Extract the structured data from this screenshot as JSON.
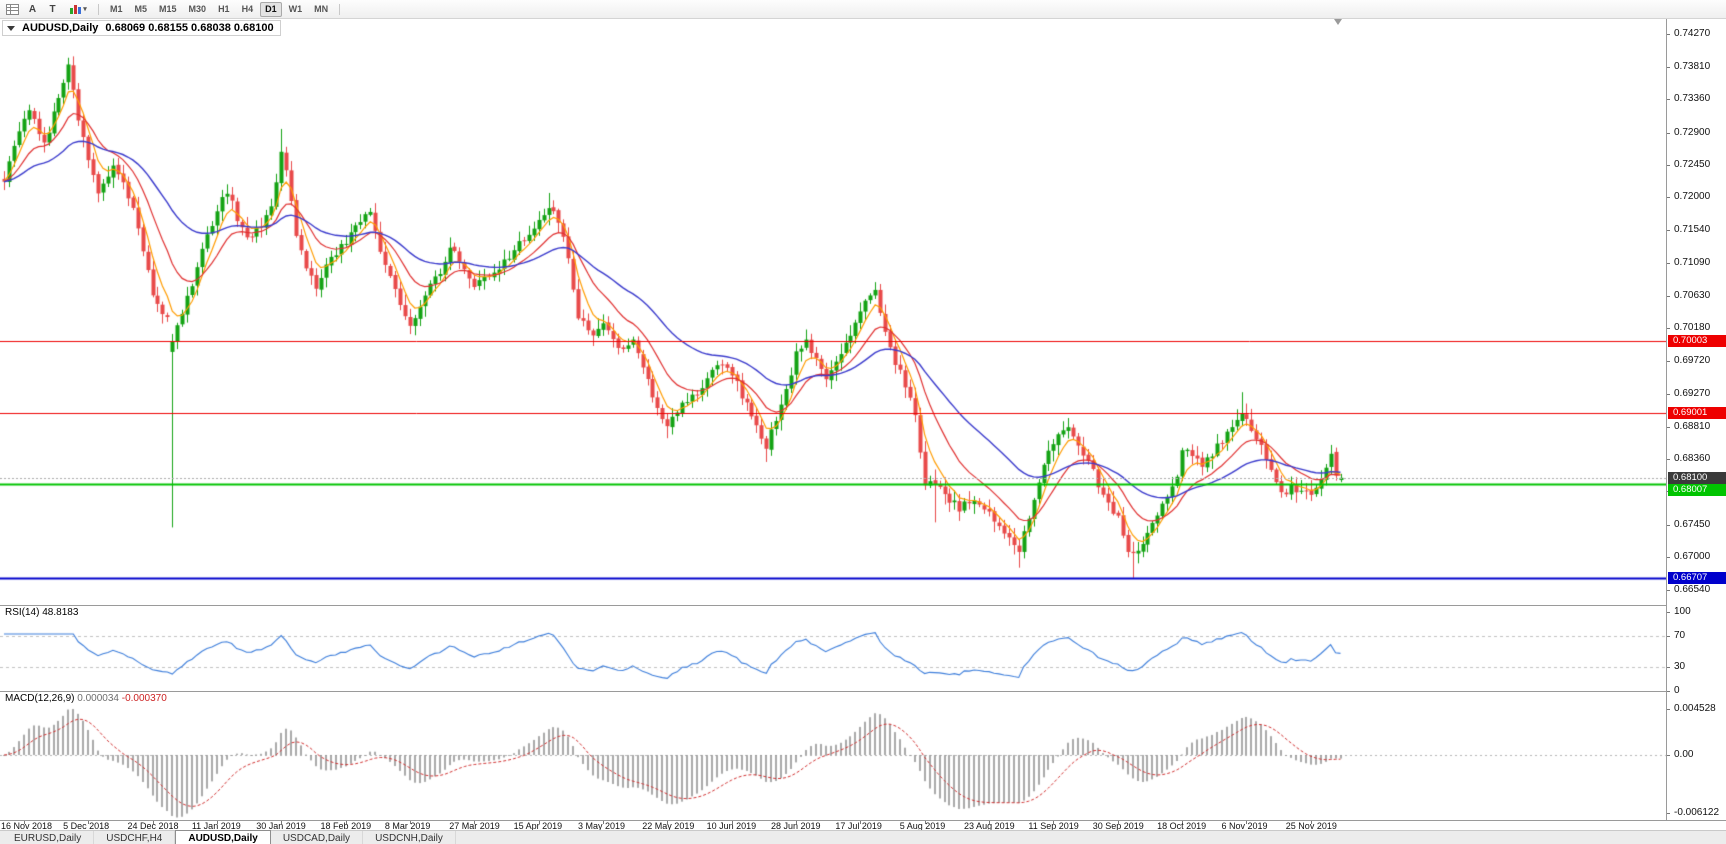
{
  "toolbar": {
    "icons": [
      {
        "name": "chart-grid-icon",
        "glyph": ""
      },
      {
        "name": "cursor-tool-icon",
        "glyph": "A"
      },
      {
        "name": "text-tool-icon",
        "glyph": "T"
      },
      {
        "name": "indicators-dropdown-icon",
        "glyph": "▾"
      }
    ],
    "timeframes": [
      {
        "label": "M1"
      },
      {
        "label": "M5"
      },
      {
        "label": "M15"
      },
      {
        "label": "M30"
      },
      {
        "label": "H1"
      },
      {
        "label": "H4"
      },
      {
        "label": "D1",
        "active": true
      },
      {
        "label": "W1"
      },
      {
        "label": "MN"
      }
    ]
  },
  "chart_title": {
    "symbol": "AUDUSD,Daily",
    "ohlc": "0.68069 0.68155 0.68038 0.68100"
  },
  "price_axis_ticks": [
    "0.74270",
    "0.73810",
    "0.73360",
    "0.72900",
    "0.72450",
    "0.72000",
    "0.71540",
    "0.71090",
    "0.70630",
    "0.70180",
    "0.69720",
    "0.69270",
    "0.68810",
    "0.68360",
    "0.67910",
    "0.67450",
    "0.67000",
    "0.66540"
  ],
  "rsi_panel": {
    "label": "RSI(14)",
    "value": "48.8183",
    "axis_ticks": [
      {
        "text": "100",
        "v": 100
      },
      {
        "text": "70",
        "v": 70
      },
      {
        "text": "30",
        "v": 30
      },
      {
        "text": "0",
        "v": 0
      }
    ]
  },
  "macd_panel": {
    "label": "MACD(12,26,9)",
    "value_main": "0.000034",
    "value_signal": "-0.000370",
    "axis_ticks": [
      {
        "text": "0.004528",
        "v": 0.004528
      },
      {
        "text": "0.00",
        "v": 0
      },
      {
        "text": "-0.006122",
        "v": -0.006122
      }
    ]
  },
  "time_axis_labels": [
    {
      "text": "16 Nov 2018",
      "bar": 4
    },
    {
      "text": "5 Dec 2018",
      "bar": 17
    },
    {
      "text": "24 Dec 2018",
      "bar": 30
    },
    {
      "text": "11 Jan 2019",
      "bar": 43
    },
    {
      "text": "30 Jan 2019",
      "bar": 56
    },
    {
      "text": "18 Feb 2019",
      "bar": 69
    },
    {
      "text": "8 Mar 2019",
      "bar": 82
    },
    {
      "text": "27 Mar 2019",
      "bar": 95
    },
    {
      "text": "15 Apr 2019",
      "bar": 108
    },
    {
      "text": "3 May 2019",
      "bar": 121
    },
    {
      "text": "22 May 2019",
      "bar": 134
    },
    {
      "text": "10 Jun 2019",
      "bar": 147
    },
    {
      "text": "28 Jun 2019",
      "bar": 160
    },
    {
      "text": "17 Jul 2019",
      "bar": 173
    },
    {
      "text": "5 Aug 2019",
      "bar": 186
    },
    {
      "text": "23 Aug 2019",
      "bar": 199
    },
    {
      "text": "11 Sep 2019",
      "bar": 212
    },
    {
      "text": "30 Sep 2019",
      "bar": 225
    },
    {
      "text": "18 Oct 2019",
      "bar": 238
    },
    {
      "text": "6 Nov 2019",
      "bar": 251
    },
    {
      "text": "25 Nov 2019",
      "bar": 264
    }
  ],
  "tabs": [
    {
      "label": "EURUSD,Daily"
    },
    {
      "label": "USDCHF,H4"
    },
    {
      "label": "AUDUSD,Daily",
      "active": true
    },
    {
      "label": "USDCAD,Daily"
    },
    {
      "label": "USDCNH,Daily"
    }
  ],
  "colors": {
    "candle_up": "#14a314",
    "candle_down": "#e84a4a",
    "ma_fast": "#ff9c00",
    "ma_mid": "#e03030",
    "ma_slow": "#3a3acc",
    "rsi_line": "#3d7edb",
    "macd_hist": "#8f8f8f",
    "macd_signal": "#d03030",
    "level_red": "#ee0000",
    "level_green": "#00c400",
    "level_blue": "#0000cc",
    "current_price_line": "#aaaaaa",
    "current_badge_bg": "#3a3a3a"
  },
  "chart_data": {
    "type": "candlestick",
    "symbol": "AUDUSD",
    "timeframe": "Daily",
    "bar_count": 271,
    "visible_price_range": [
      0.6654,
      0.7427
    ],
    "price_waypoints": [
      [
        0,
        0.7225
      ],
      [
        3,
        0.729
      ],
      [
        5,
        0.732
      ],
      [
        8,
        0.7275
      ],
      [
        11,
        0.7335
      ],
      [
        13,
        0.7385
      ],
      [
        15,
        0.7305
      ],
      [
        17,
        0.7255
      ],
      [
        19,
        0.721
      ],
      [
        22,
        0.7245
      ],
      [
        24,
        0.722
      ],
      [
        26,
        0.718
      ],
      [
        28,
        0.713
      ],
      [
        30,
        0.706
      ],
      [
        33,
        0.703
      ],
      [
        34,
        0.7
      ],
      [
        36,
        0.704
      ],
      [
        38,
        0.708
      ],
      [
        40,
        0.713
      ],
      [
        43,
        0.718
      ],
      [
        45,
        0.721
      ],
      [
        47,
        0.717
      ],
      [
        49,
        0.714
      ],
      [
        52,
        0.716
      ],
      [
        54,
        0.719
      ],
      [
        56,
        0.726
      ],
      [
        57,
        0.7235
      ],
      [
        59,
        0.715
      ],
      [
        61,
        0.71
      ],
      [
        63,
        0.7075
      ],
      [
        66,
        0.7115
      ],
      [
        69,
        0.714
      ],
      [
        72,
        0.7165
      ],
      [
        74,
        0.7185
      ],
      [
        76,
        0.7125
      ],
      [
        78,
        0.7085
      ],
      [
        80,
        0.7055
      ],
      [
        82,
        0.702
      ],
      [
        85,
        0.7065
      ],
      [
        88,
        0.7095
      ],
      [
        90,
        0.7135
      ],
      [
        92,
        0.711
      ],
      [
        95,
        0.708
      ],
      [
        98,
        0.709
      ],
      [
        101,
        0.711
      ],
      [
        104,
        0.7135
      ],
      [
        107,
        0.716
      ],
      [
        110,
        0.719
      ],
      [
        112,
        0.717
      ],
      [
        114,
        0.7115
      ],
      [
        116,
        0.7035
      ],
      [
        119,
        0.701
      ],
      [
        121,
        0.702
      ],
      [
        124,
        0.699
      ],
      [
        127,
        0.6998
      ],
      [
        130,
        0.6945
      ],
      [
        132,
        0.6905
      ],
      [
        134,
        0.688
      ],
      [
        137,
        0.6915
      ],
      [
        140,
        0.693
      ],
      [
        143,
        0.6955
      ],
      [
        145,
        0.6968
      ],
      [
        147,
        0.6955
      ],
      [
        150,
        0.691
      ],
      [
        152,
        0.6882
      ],
      [
        154,
        0.6852
      ],
      [
        156,
        0.6892
      ],
      [
        158,
        0.693
      ],
      [
        160,
        0.6985
      ],
      [
        162,
        0.7
      ],
      [
        164,
        0.6972
      ],
      [
        166,
        0.695
      ],
      [
        168,
        0.6968
      ],
      [
        170,
        0.6995
      ],
      [
        172,
        0.703
      ],
      [
        174,
        0.7058
      ],
      [
        176,
        0.7072
      ],
      [
        178,
        0.7012
      ],
      [
        180,
        0.6972
      ],
      [
        182,
        0.6938
      ],
      [
        184,
        0.6898
      ],
      [
        186,
        0.68
      ],
      [
        188,
        0.6802
      ],
      [
        190,
        0.6785
      ],
      [
        193,
        0.6768
      ],
      [
        196,
        0.6782
      ],
      [
        199,
        0.6762
      ],
      [
        202,
        0.6732
      ],
      [
        205,
        0.6708
      ],
      [
        207,
        0.6758
      ],
      [
        209,
        0.68
      ],
      [
        211,
        0.6848
      ],
      [
        213,
        0.6868
      ],
      [
        215,
        0.6878
      ],
      [
        217,
        0.6856
      ],
      [
        219,
        0.6836
      ],
      [
        221,
        0.6798
      ],
      [
        223,
        0.6772
      ],
      [
        225,
        0.6752
      ],
      [
        227,
        0.6708
      ],
      [
        229,
        0.6712
      ],
      [
        231,
        0.6735
      ],
      [
        233,
        0.6758
      ],
      [
        235,
        0.6782
      ],
      [
        237,
        0.6812
      ],
      [
        238,
        0.6848
      ],
      [
        240,
        0.684
      ],
      [
        242,
        0.683
      ],
      [
        244,
        0.6845
      ],
      [
        246,
        0.6862
      ],
      [
        248,
        0.6885
      ],
      [
        250,
        0.6898
      ],
      [
        252,
        0.6878
      ],
      [
        254,
        0.6858
      ],
      [
        256,
        0.6822
      ],
      [
        258,
        0.6785
      ],
      [
        260,
        0.6795
      ],
      [
        262,
        0.6788
      ],
      [
        264,
        0.6785
      ],
      [
        266,
        0.6812
      ],
      [
        268,
        0.6838
      ],
      [
        269,
        0.6845
      ],
      [
        270,
        0.681
      ]
    ],
    "special_bars": [
      {
        "i": 13,
        "h": 0.7394
      },
      {
        "i": 34,
        "o": 0.6985,
        "h": 0.701,
        "l": 0.6741,
        "c": 0.7
      },
      {
        "i": 56,
        "h": 0.7295
      },
      {
        "i": 110,
        "h": 0.7206
      },
      {
        "i": 134,
        "l": 0.6865
      },
      {
        "i": 154,
        "l": 0.6832
      },
      {
        "i": 176,
        "h": 0.7082
      },
      {
        "i": 188,
        "l": 0.6748
      },
      {
        "i": 205,
        "l": 0.6685
      },
      {
        "i": 228,
        "l": 0.6671
      },
      {
        "i": 250,
        "h": 0.6929
      },
      {
        "i": 269,
        "o": 0.6846,
        "h": 0.6852,
        "l": 0.6806,
        "c": 0.6813
      },
      {
        "i": 270,
        "o": 0.68069,
        "h": 0.68155,
        "l": 0.68038,
        "c": 0.681
      }
    ],
    "horizontal_levels": [
      {
        "price": 0.70003,
        "label": "0.70003",
        "color_key": "level_red",
        "line_width": 1
      },
      {
        "price": 0.69001,
        "label": "0.69001",
        "color_key": "level_red",
        "line_width": 1
      },
      {
        "price": 0.681,
        "label": "0.68100",
        "color_key": "current_price_line",
        "line_width": 1,
        "dotted": true,
        "badge_key": "current_badge_bg",
        "current": true
      },
      {
        "price": 0.68007,
        "label": "0.68007",
        "color_key": "level_green",
        "line_width": 2
      },
      {
        "price": 0.66707,
        "label": "0.66707",
        "color_key": "level_blue",
        "line_width": 2
      }
    ],
    "moving_averages": [
      {
        "period": 5,
        "color_key": "ma_fast"
      },
      {
        "period": 13,
        "color_key": "ma_mid"
      },
      {
        "period": 34,
        "color_key": "ma_slow"
      }
    ],
    "rsi": {
      "period": 14,
      "current": 48.8183,
      "bands": [
        70,
        30
      ],
      "range": [
        0,
        100
      ]
    },
    "macd": {
      "fast": 12,
      "slow": 26,
      "signal": 9,
      "current_main": 3.4e-05,
      "current_signal": -0.00037,
      "visible_max": 0.004528,
      "visible_min": -0.006122
    }
  }
}
